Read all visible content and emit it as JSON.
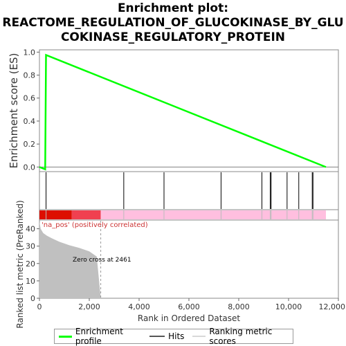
{
  "title_lines": [
    "Enrichment plot:",
    "REACTOME_REGULATION_OF_GLUCOKINASE_BY_GLU",
    "COKINASE_REGULATORY_PROTEIN"
  ],
  "colors": {
    "enrichment_line": "#00ff00",
    "hits": "#000000",
    "axis": "#808080",
    "bar_red_dark": "#dd0f00",
    "bar_red_light": "#f04050",
    "bar_pink": "#ffbfdf",
    "metric_fill": "#c0c0c0",
    "pos_label": "#cc3333"
  },
  "chart_data": [
    {
      "id": "enrichment-profile",
      "type": "line",
      "ylabel": "Enrichment score (ES)",
      "ylim": [
        -0.04,
        1.02
      ],
      "xlim": [
        0,
        12000
      ],
      "yticks": [
        0.0,
        0.2,
        0.4,
        0.6,
        0.8,
        1.0
      ],
      "ytick_labels": [
        "0.0",
        "0.2",
        "0.4",
        "0.6",
        "0.8",
        "1.0"
      ],
      "series": [
        {
          "name": "Enrichment profile",
          "x": [
            0,
            230,
            265,
            11500
          ],
          "y": [
            0.0,
            -0.02,
            0.975,
            0.0
          ]
        }
      ]
    },
    {
      "id": "hits",
      "type": "scatter",
      "xlim": [
        0,
        12000
      ],
      "hit_positions": [
        265,
        3385,
        5000,
        7290,
        8930,
        9265,
        9300,
        9940,
        10410,
        10950,
        10980
      ]
    },
    {
      "id": "ranked-metric",
      "type": "area",
      "ylabel": "Ranked list metric (PreRanked)",
      "xlabel": "Rank in Ordered Dataset",
      "xlim": [
        0,
        12000
      ],
      "ylim": [
        0,
        45
      ],
      "xticks": [
        0,
        2000,
        4000,
        6000,
        8000,
        10000,
        12000
      ],
      "xtick_labels": [
        "0",
        "2,000",
        "4,000",
        "6,000",
        "8,000",
        "10,000",
        "12,000"
      ],
      "yticks": [
        0,
        10,
        20,
        30,
        40
      ],
      "ytick_labels": [
        "0",
        "10",
        "20",
        "30",
        "40"
      ],
      "x": [
        0,
        50,
        150,
        300,
        500,
        800,
        1200,
        1600,
        2000,
        2300,
        2461
      ],
      "y": [
        44,
        40,
        37.5,
        36,
        34.5,
        32.5,
        30.5,
        29,
        27,
        24,
        0
      ],
      "zero_cross_label": "Zero cross at 2461",
      "pos_label": "'na_pos' (positively correlated)",
      "color_bar_segments": [
        {
          "from": 0,
          "to": 1300,
          "color_key": "bar_red_dark"
        },
        {
          "from": 1300,
          "to": 2461,
          "color_key": "bar_red_light"
        },
        {
          "from": 2461,
          "to": 11500,
          "color_key": "bar_pink"
        }
      ]
    }
  ],
  "legend": {
    "items": [
      {
        "label": "Enrichment profile",
        "color": "#00ff00"
      },
      {
        "label": "Hits",
        "color": "#000000"
      },
      {
        "label": "Ranking metric scores",
        "color": "#d8d8d8"
      }
    ]
  }
}
